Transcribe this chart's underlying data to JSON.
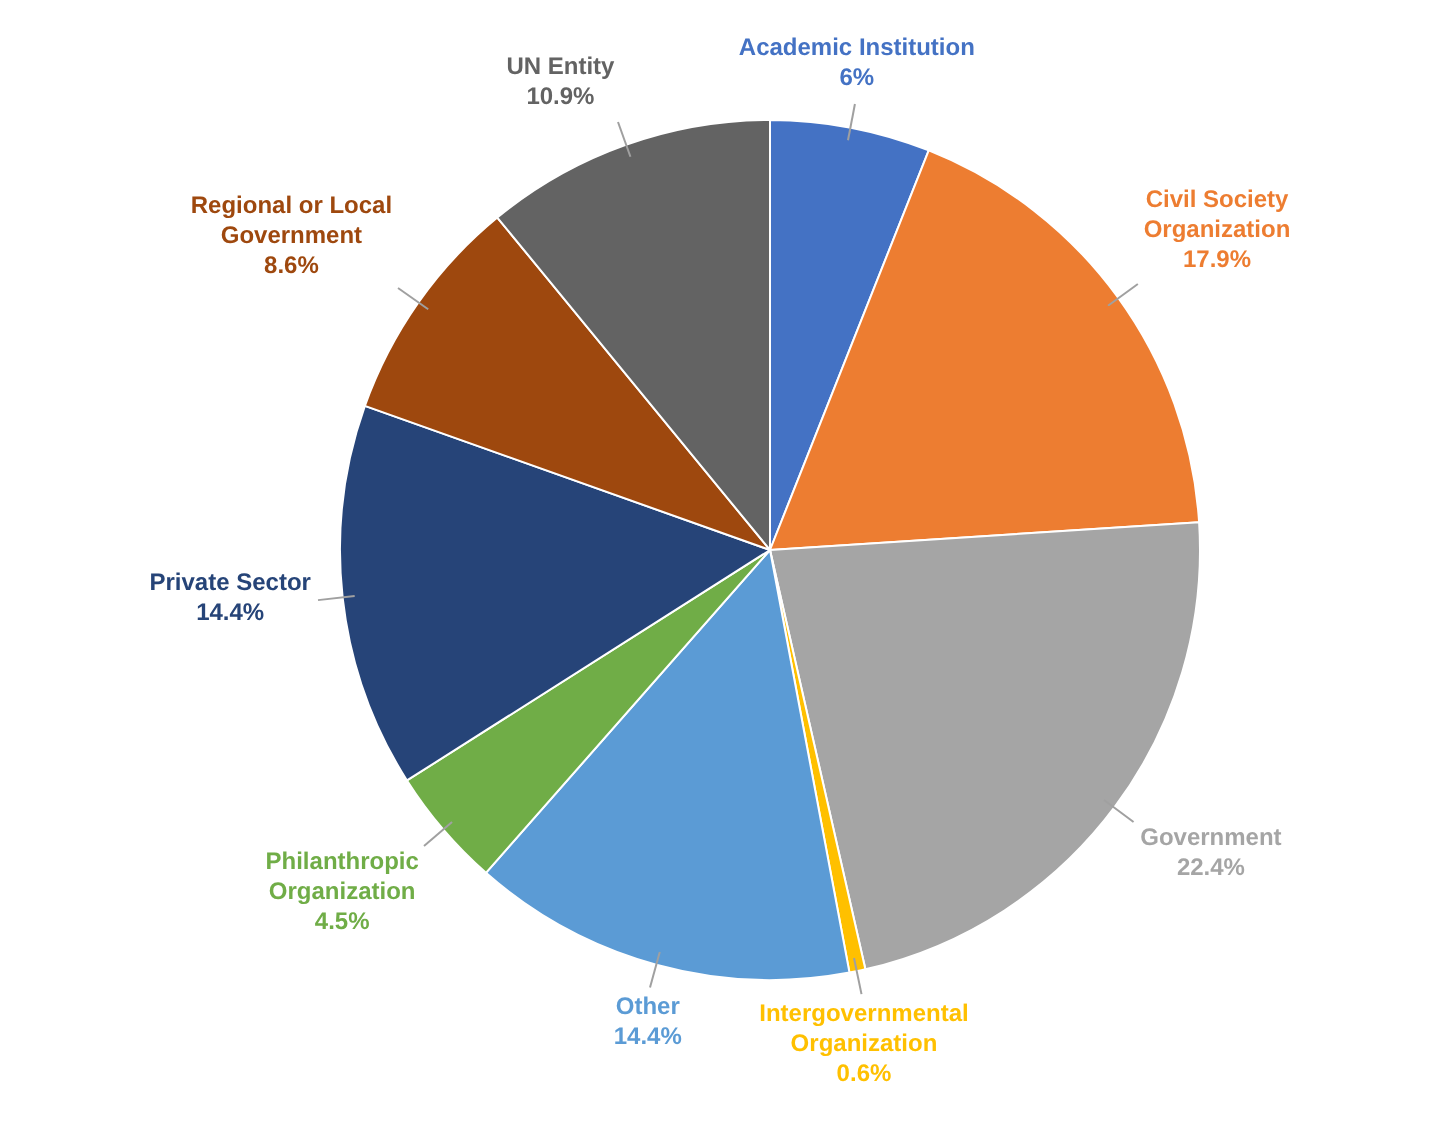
{
  "chart_data": {
    "type": "pie",
    "categories": [
      "Academic Institution",
      "Civil Society Organization",
      "Government",
      "Intergovernmental Organization",
      "Other",
      "Philanthropic Organization",
      "Private Sector",
      "Regional or Local Government",
      "UN Entity"
    ],
    "values": [
      6,
      17.9,
      22.4,
      0.6,
      14.4,
      4.5,
      14.4,
      8.6,
      10.9
    ],
    "colors": [
      "#4472c4",
      "#ed7d31",
      "#a5a5a5",
      "#ffc000",
      "#5b9bd5",
      "#70ad47",
      "#264478",
      "#9e480e",
      "#636363"
    ],
    "value_labels": [
      "6%",
      "17.9%",
      "22.4%",
      "0.6%",
      "14.4%",
      "4.5%",
      "14.4%",
      "8.6%",
      "10.9%"
    ],
    "legend": false
  }
}
